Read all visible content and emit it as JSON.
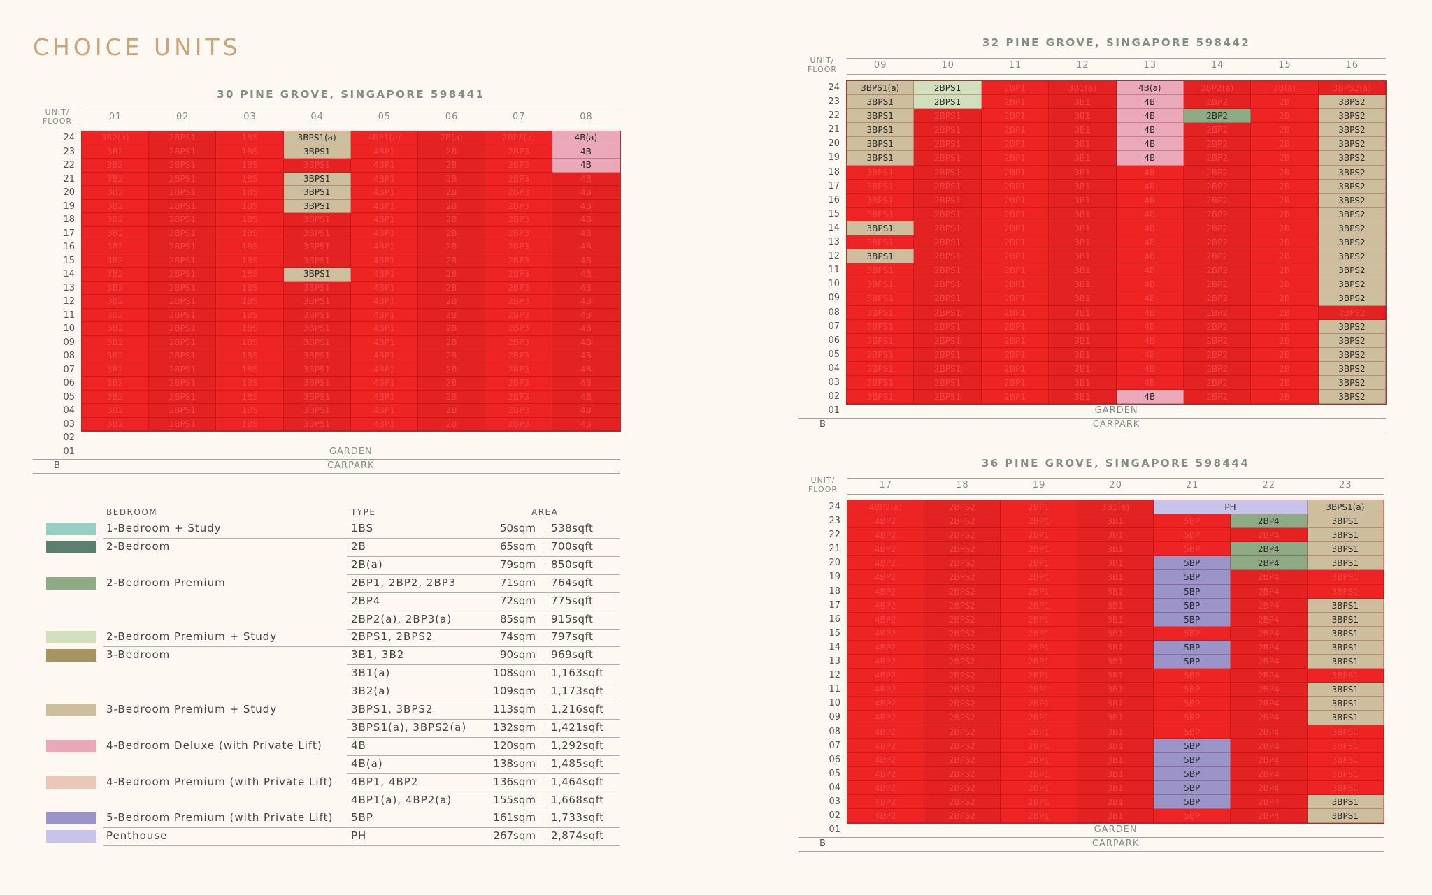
{
  "page_title": "CHOICE UNITS",
  "colors": {
    "sold": "#ee2323",
    "1BS": "#97cfc4",
    "2B": "#5d7f72",
    "2BP": "#8fab85",
    "2BPS": "#d3dfbc",
    "3B": "#a89461",
    "3BPS": "#cdbf9e",
    "4BD": "#eaa9b8",
    "4BP": "#ebc7b6",
    "5BP": "#9b94c9",
    "PH": "#c8c3ea"
  },
  "common": {
    "unit_floor": [
      "UNIT/",
      "FLOOR"
    ],
    "garden_floor": "01",
    "garden_label": "GARDEN",
    "carpark_floor": "B",
    "carpark_label": "CARPARK",
    "floor_02": "02"
  },
  "buildings": [
    {
      "title": "30 PINE GROVE, SINGAPORE 598441",
      "units": [
        "01",
        "02",
        "03",
        "04",
        "05",
        "06",
        "07",
        "08"
      ],
      "floors": [
        "24",
        "23",
        "22",
        "21",
        "20",
        "19",
        "18",
        "17",
        "16",
        "15",
        "14",
        "13",
        "12",
        "11",
        "10",
        "09",
        "08",
        "07",
        "06",
        "05",
        "04",
        "03"
      ],
      "columns": [
        {
          "type": "3B2",
          "overrides": {
            "24": "3B2(a)"
          }
        },
        {
          "type": "2BPS1"
        },
        {
          "type": "1BS"
        },
        {
          "type": "3BPS1",
          "overrides": {
            "24": "3BPS1(a)"
          },
          "available": [
            "24",
            "23",
            "21",
            "20",
            "19",
            "14"
          ],
          "avail_color": "3BPS"
        },
        {
          "type": "4BP1",
          "overrides": {
            "24": "4BP1(a)"
          }
        },
        {
          "type": "2B",
          "overrides": {
            "24": "2B(a)"
          }
        },
        {
          "type": "2BP3",
          "overrides": {
            "24": "2BP3(a)"
          }
        },
        {
          "type": "4B",
          "overrides": {
            "24": "4B(a)"
          },
          "available": [
            "24",
            "23",
            "22"
          ],
          "avail_color": "4BD"
        }
      ]
    },
    {
      "title": "32 PINE GROVE, SINGAPORE 598442",
      "units": [
        "09",
        "10",
        "11",
        "12",
        "13",
        "14",
        "15",
        "16"
      ],
      "floors": [
        "24",
        "23",
        "22",
        "21",
        "20",
        "19",
        "18",
        "17",
        "16",
        "15",
        "14",
        "13",
        "12",
        "11",
        "10",
        "09",
        "08",
        "07",
        "06",
        "05",
        "04",
        "03",
        "02"
      ],
      "columns": [
        {
          "type": "3BPS1",
          "overrides": {
            "24": "3BPS1(a)"
          },
          "available": [
            "24",
            "23",
            "22",
            "21",
            "20",
            "19",
            "14",
            "12"
          ],
          "avail_color": "3BPS"
        },
        {
          "type": "2BPS1",
          "available": [
            "24",
            "23"
          ],
          "avail_color": "2BPS"
        },
        {
          "type": "2BP1"
        },
        {
          "type": "3B1",
          "overrides": {
            "24": "3B1(a)"
          }
        },
        {
          "type": "4B",
          "overrides": {
            "24": "4B(a)"
          },
          "available": [
            "24",
            "23",
            "22",
            "21",
            "20",
            "19",
            "02"
          ],
          "avail_color": "4BD"
        },
        {
          "type": "2BP2",
          "overrides": {
            "24": "2BP2(a)"
          },
          "available": [
            "22"
          ],
          "avail_color": "2BP"
        },
        {
          "type": "2B",
          "overrides": {
            "24": "2B(a)"
          }
        },
        {
          "type": "3BPS2",
          "overrides": {
            "24": "3BPS2(a)"
          },
          "available": [
            "23",
            "22",
            "21",
            "20",
            "19",
            "18",
            "17",
            "16",
            "15",
            "14",
            "13",
            "12",
            "11",
            "10",
            "09",
            "07",
            "06",
            "05",
            "04",
            "03",
            "02"
          ],
          "avail_color": "3BPS"
        }
      ]
    },
    {
      "title": "36 PINE GROVE, SINGAPORE 598444",
      "units": [
        "17",
        "18",
        "19",
        "20",
        "21",
        "22",
        "23"
      ],
      "floors": [
        "24",
        "23",
        "22",
        "21",
        "20",
        "19",
        "18",
        "17",
        "16",
        "15",
        "14",
        "13",
        "12",
        "11",
        "10",
        "09",
        "08",
        "07",
        "06",
        "05",
        "04",
        "03",
        "02"
      ],
      "penthouse_label": "PH",
      "columns": [
        {
          "type": "4BP2",
          "overrides": {
            "24": "4BP2(a)"
          }
        },
        {
          "type": "2BPS2"
        },
        {
          "type": "2BP1"
        },
        {
          "type": "3B1",
          "overrides": {
            "24": "3B1(a)"
          }
        },
        {
          "type": "5BP",
          "available": [
            "20",
            "19",
            "18",
            "17",
            "16",
            "14",
            "13",
            "07",
            "06",
            "05",
            "04",
            "03"
          ],
          "avail_color": "5BP"
        },
        {
          "type": "2BP4",
          "available": [
            "23",
            "21",
            "20"
          ],
          "avail_color": "2BP"
        },
        {
          "type": "3BPS1",
          "overrides": {
            "24": "3BPS1(a)"
          },
          "available": [
            "24",
            "23",
            "22",
            "21",
            "20",
            "17",
            "16",
            "15",
            "14",
            "13",
            "11",
            "10",
            "09",
            "03",
            "02"
          ],
          "avail_color": "3BPS"
        }
      ]
    }
  ],
  "legend": {
    "headers": {
      "bedroom": "BEDROOM",
      "type": "TYPE",
      "area": "AREA"
    },
    "rows": [
      {
        "color": "1BS",
        "bedroom": "1-Bedroom + Study",
        "type": "1BS",
        "sqm": "50sqm",
        "sqft": "538sqft"
      },
      {
        "color": "2B",
        "bedroom": "2-Bedroom",
        "type": "2B",
        "sqm": "65sqm",
        "sqft": "700sqft"
      },
      {
        "color": "",
        "bedroom": "",
        "type": "2B(a)",
        "sqm": "79sqm",
        "sqft": "850sqft"
      },
      {
        "color": "2BP",
        "bedroom": "2-Bedroom Premium",
        "type": "2BP1, 2BP2, 2BP3",
        "sqm": "71sqm",
        "sqft": "764sqft"
      },
      {
        "color": "",
        "bedroom": "",
        "type": "2BP4",
        "sqm": "72sqm",
        "sqft": "775sqft"
      },
      {
        "color": "",
        "bedroom": "",
        "type": "2BP2(a), 2BP3(a)",
        "sqm": "85sqm",
        "sqft": "915sqft"
      },
      {
        "color": "2BPS",
        "bedroom": "2-Bedroom Premium + Study",
        "type": "2BPS1, 2BPS2",
        "sqm": "74sqm",
        "sqft": "797sqft"
      },
      {
        "color": "3B",
        "bedroom": "3-Bedroom",
        "type": "3B1, 3B2",
        "sqm": "90sqm",
        "sqft": "969sqft"
      },
      {
        "color": "",
        "bedroom": "",
        "type": "3B1(a)",
        "sqm": "108sqm",
        "sqft": "1,163sqft"
      },
      {
        "color": "",
        "bedroom": "",
        "type": "3B2(a)",
        "sqm": "109sqm",
        "sqft": "1,173sqft"
      },
      {
        "color": "3BPS",
        "bedroom": "3-Bedroom Premium + Study",
        "type": "3BPS1, 3BPS2",
        "sqm": "113sqm",
        "sqft": "1,216sqft"
      },
      {
        "color": "",
        "bedroom": "",
        "type": "3BPS1(a), 3BPS2(a)",
        "sqm": "132sqm",
        "sqft": "1,421sqft"
      },
      {
        "color": "4BD",
        "bedroom": "4-Bedroom Deluxe (with Private Lift)",
        "type": "4B",
        "sqm": "120sqm",
        "sqft": "1,292sqft"
      },
      {
        "color": "",
        "bedroom": "",
        "type": "4B(a)",
        "sqm": "138sqm",
        "sqft": "1,485sqft"
      },
      {
        "color": "4BP",
        "bedroom": "4-Bedroom Premium (with Private Lift)",
        "type": "4BP1, 4BP2",
        "sqm": "136sqm",
        "sqft": "1,464sqft"
      },
      {
        "color": "",
        "bedroom": "",
        "type": "4BP1(a), 4BP2(a)",
        "sqm": "155sqm",
        "sqft": "1,668sqft"
      },
      {
        "color": "5BP",
        "bedroom": "5-Bedroom Premium (with Private Lift)",
        "type": "5BP",
        "sqm": "161sqm",
        "sqft": "1,733sqft"
      },
      {
        "color": "PH",
        "bedroom": "Penthouse",
        "type": "PH",
        "sqm": "267sqm",
        "sqft": "2,874sqft"
      }
    ]
  }
}
